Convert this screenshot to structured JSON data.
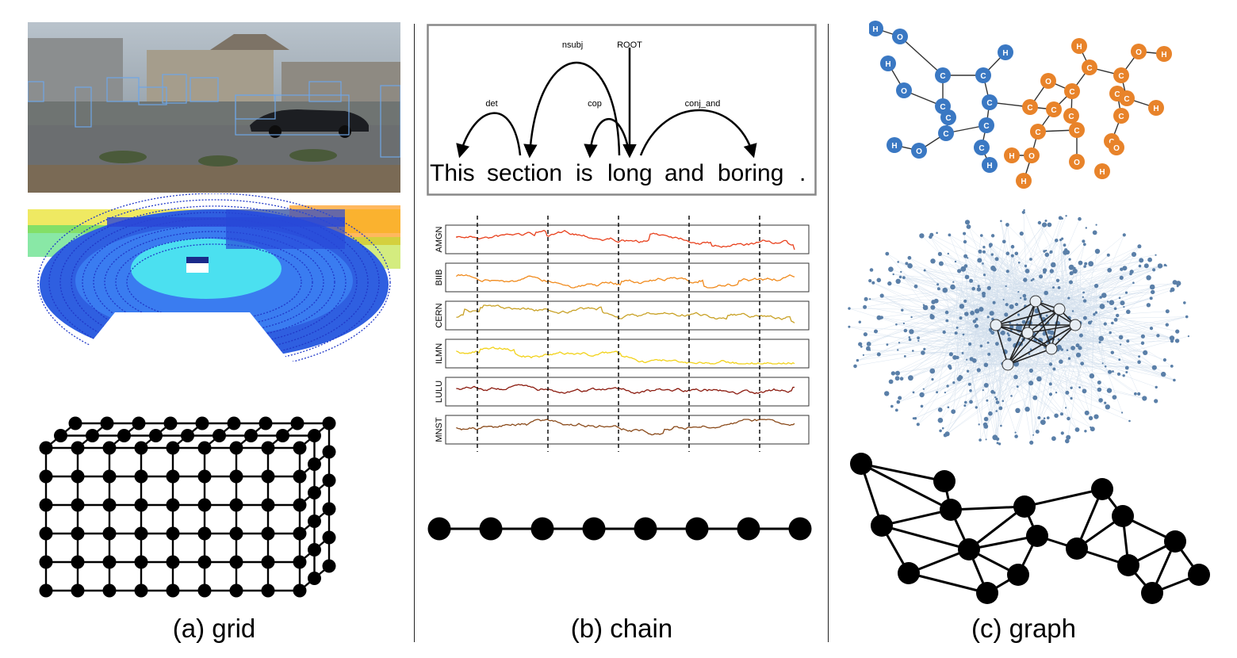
{
  "captions": {
    "grid": "(a) grid",
    "chain": "(b) chain",
    "graph": "(c) graph"
  },
  "dependency": {
    "words": [
      "This",
      "section",
      "is",
      "long",
      "and",
      "boring",
      "."
    ],
    "arcs": [
      "det",
      "nsubj",
      "cop",
      "ROOT",
      "conj_and"
    ]
  },
  "stocks": {
    "tickers": [
      "AMGN",
      "BIIB",
      "CERN",
      "ILMN",
      "LULU",
      "MNST"
    ],
    "colors": [
      "#e8401c",
      "#f08a1c",
      "#c9a227",
      "#f2d21a",
      "#8b1a0e",
      "#8a4a1a"
    ]
  },
  "molecule": {
    "blue_color": "#3a78c3",
    "orange_color": "#e8832a",
    "atom_labels": [
      "H",
      "O",
      "C"
    ]
  },
  "colors": {
    "network_node": "#5a7fa8",
    "network_edge": "#9ab8d6"
  }
}
